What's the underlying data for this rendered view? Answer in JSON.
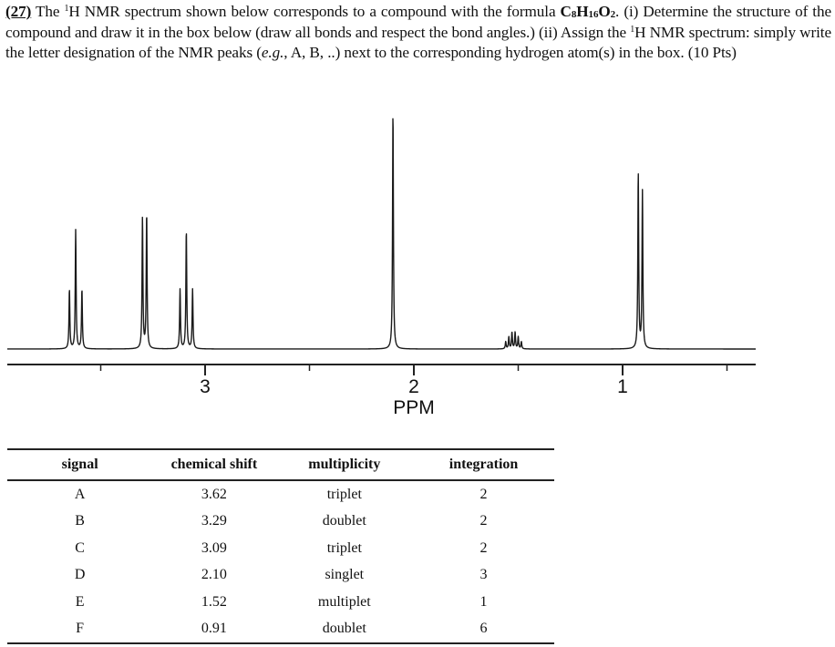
{
  "question": {
    "number": "(27)",
    "text_1": " The ",
    "sup_1": "1",
    "text_2": "H NMR spectrum shown below corresponds to a compound with the formula ",
    "formula": {
      "c": "C",
      "c_n": "8",
      "h": "H",
      "h_n": "16",
      "o": "O",
      "o_n": "2"
    },
    "text_3": ". (i) Determine the structure of the compound and draw it in the box below (draw all bonds and respect the bond angles.) (ii) Assign the ",
    "sup_2": "1",
    "text_4": "H NMR spectrum: simply write the letter designation of the NMR peaks (",
    "eg": "e.g.",
    "text_5": ", A, B, ..) next to the corresponding hydrogen atom(s) in the box. (10 Pts)"
  },
  "chart_data": {
    "type": "line",
    "title": "1H NMR spectrum",
    "xlabel": "PPM",
    "ylabel": "",
    "x_axis_reversed": true,
    "xlim": [
      4.0,
      0.35
    ],
    "major_ticks": [
      3,
      2,
      1
    ],
    "tick_labels": [
      "3",
      "2",
      "1"
    ],
    "minor_ticks": [
      3.5,
      2.5,
      1.5,
      0.5
    ],
    "grid": false,
    "legend": null,
    "peaks": [
      {
        "signal": "A",
        "ppm": 3.62,
        "multiplicity": "triplet",
        "integration": 2,
        "lines_ppm": [
          3.65,
          3.62,
          3.59
        ],
        "rel_heights": [
          0.25,
          0.5,
          0.25
        ]
      },
      {
        "signal": "B",
        "ppm": 3.29,
        "multiplicity": "doublet",
        "integration": 2,
        "lines_ppm": [
          3.3,
          3.28
        ],
        "rel_heights": [
          0.55,
          0.57
        ]
      },
      {
        "signal": "C",
        "ppm": 3.09,
        "multiplicity": "triplet",
        "integration": 2,
        "lines_ppm": [
          3.12,
          3.09,
          3.06
        ],
        "rel_heights": [
          0.25,
          0.5,
          0.25
        ]
      },
      {
        "signal": "D",
        "ppm": 2.1,
        "multiplicity": "singlet",
        "integration": 3,
        "lines_ppm": [
          2.1
        ],
        "rel_heights": [
          1.0
        ]
      },
      {
        "signal": "E",
        "ppm": 1.52,
        "multiplicity": "multiplet",
        "integration": 1,
        "lines_ppm": [
          1.56,
          1.545,
          1.53,
          1.515,
          1.5,
          1.485
        ],
        "rel_heights": [
          0.03,
          0.05,
          0.07,
          0.07,
          0.05,
          0.03
        ]
      },
      {
        "signal": "F",
        "ppm": 0.91,
        "multiplicity": "doublet",
        "integration": 6,
        "lines_ppm": [
          0.925,
          0.905
        ],
        "rel_heights": [
          0.74,
          0.66
        ]
      }
    ]
  },
  "table": {
    "headers": [
      "signal",
      "chemical shift",
      "multiplicity",
      "integration"
    ],
    "rows": [
      [
        "A",
        "3.62",
        "triplet",
        "2"
      ],
      [
        "B",
        "3.29",
        "doublet",
        "2"
      ],
      [
        "C",
        "3.09",
        "triplet",
        "2"
      ],
      [
        "D",
        "2.10",
        "singlet",
        "3"
      ],
      [
        "E",
        "1.52",
        "multiplet",
        "1"
      ],
      [
        "F",
        "0.91",
        "doublet",
        "6"
      ]
    ]
  }
}
